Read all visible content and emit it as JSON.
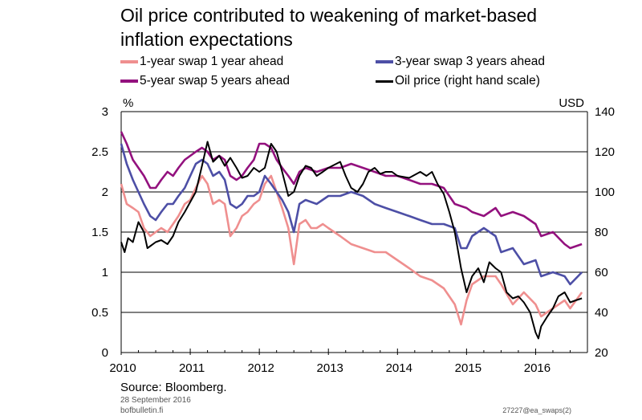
{
  "chart_data": {
    "type": "line",
    "title": "Oil price contributed to weakening of market-based inflation expectations",
    "title_lines": [
      "Oil price contributed to weakening of market-based",
      "inflation expectations"
    ],
    "left_unit": "%",
    "right_unit": "USD",
    "left_axis": {
      "min": 0,
      "max": 3,
      "ticks": [
        "0",
        "0.5",
        "1",
        "1.5",
        "2",
        "2.5",
        "3"
      ]
    },
    "right_axis": {
      "min": 20,
      "max": 140,
      "ticks": [
        "20",
        "40",
        "60",
        "80",
        "100",
        "120",
        "140"
      ]
    },
    "x_axis": {
      "min": 2010,
      "max": 2016.75,
      "ticks": [
        "2010",
        "2011",
        "2012",
        "2013",
        "2014",
        "2015",
        "2016"
      ]
    },
    "grid": "horizontal",
    "legend_position": "top",
    "series": [
      {
        "name": "1-year swap 1 year ahead",
        "color": "#ef8f8f",
        "axis": "left",
        "x": [
          2010.0,
          2010.08,
          2010.17,
          2010.25,
          2010.33,
          2010.42,
          2010.5,
          2010.58,
          2010.67,
          2010.75,
          2010.83,
          2010.92,
          2011.0,
          2011.08,
          2011.17,
          2011.25,
          2011.33,
          2011.42,
          2011.5,
          2011.58,
          2011.67,
          2011.75,
          2011.83,
          2011.92,
          2012.0,
          2012.08,
          2012.17,
          2012.25,
          2012.33,
          2012.42,
          2012.5,
          2012.58,
          2012.67,
          2012.75,
          2012.83,
          2012.92,
          2013.0,
          2013.17,
          2013.33,
          2013.5,
          2013.67,
          2013.83,
          2014.0,
          2014.17,
          2014.33,
          2014.5,
          2014.67,
          2014.83,
          2014.92,
          2015.0,
          2015.08,
          2015.25,
          2015.42,
          2015.5,
          2015.67,
          2015.83,
          2016.0,
          2016.08,
          2016.25,
          2016.42,
          2016.5,
          2016.67
        ],
        "values": [
          2.1,
          1.85,
          1.8,
          1.75,
          1.55,
          1.45,
          1.5,
          1.55,
          1.5,
          1.6,
          1.7,
          1.85,
          1.9,
          2.05,
          2.2,
          2.1,
          1.85,
          1.9,
          1.85,
          1.45,
          1.55,
          1.7,
          1.75,
          1.85,
          1.9,
          2.1,
          2.2,
          2.0,
          1.8,
          1.55,
          1.1,
          1.6,
          1.65,
          1.55,
          1.55,
          1.6,
          1.55,
          1.45,
          1.35,
          1.3,
          1.25,
          1.25,
          1.15,
          1.05,
          0.95,
          0.9,
          0.8,
          0.6,
          0.35,
          0.65,
          0.85,
          0.95,
          0.95,
          0.85,
          0.6,
          0.75,
          0.6,
          0.45,
          0.55,
          0.65,
          0.55,
          0.75
        ]
      },
      {
        "name": "3-year swap 3 years ahead",
        "color": "#4d4fa6",
        "axis": "left",
        "x": [
          2010.0,
          2010.08,
          2010.17,
          2010.25,
          2010.33,
          2010.42,
          2010.5,
          2010.58,
          2010.67,
          2010.75,
          2010.83,
          2010.92,
          2011.0,
          2011.08,
          2011.17,
          2011.25,
          2011.33,
          2011.42,
          2011.5,
          2011.58,
          2011.67,
          2011.75,
          2011.83,
          2011.92,
          2012.0,
          2012.08,
          2012.17,
          2012.25,
          2012.33,
          2012.42,
          2012.5,
          2012.58,
          2012.67,
          2012.83,
          2013.0,
          2013.17,
          2013.33,
          2013.5,
          2013.67,
          2013.83,
          2014.0,
          2014.17,
          2014.33,
          2014.5,
          2014.67,
          2014.83,
          2014.92,
          2015.0,
          2015.08,
          2015.25,
          2015.42,
          2015.5,
          2015.67,
          2015.83,
          2016.0,
          2016.08,
          2016.25,
          2016.42,
          2016.5,
          2016.67
        ],
        "values": [
          2.6,
          2.35,
          2.15,
          2.0,
          1.85,
          1.7,
          1.65,
          1.75,
          1.85,
          1.85,
          1.95,
          2.05,
          2.2,
          2.35,
          2.4,
          2.35,
          2.2,
          2.25,
          2.15,
          1.85,
          1.8,
          1.85,
          1.95,
          1.95,
          2.0,
          2.2,
          2.1,
          2.0,
          1.9,
          1.75,
          1.5,
          1.85,
          1.9,
          1.85,
          1.95,
          1.95,
          2.0,
          1.95,
          1.85,
          1.8,
          1.75,
          1.7,
          1.65,
          1.6,
          1.6,
          1.55,
          1.3,
          1.3,
          1.45,
          1.55,
          1.45,
          1.25,
          1.3,
          1.1,
          1.15,
          0.95,
          1.0,
          0.95,
          0.85,
          1.0
        ]
      },
      {
        "name": "5-year swap 5 years ahead",
        "color": "#93117e",
        "axis": "left",
        "x": [
          2010.0,
          2010.08,
          2010.17,
          2010.25,
          2010.33,
          2010.42,
          2010.5,
          2010.58,
          2010.67,
          2010.75,
          2010.83,
          2010.92,
          2011.0,
          2011.08,
          2011.17,
          2011.25,
          2011.33,
          2011.42,
          2011.5,
          2011.58,
          2011.67,
          2011.75,
          2011.83,
          2011.92,
          2012.0,
          2012.08,
          2012.17,
          2012.25,
          2012.33,
          2012.42,
          2012.5,
          2012.58,
          2012.67,
          2012.83,
          2013.0,
          2013.17,
          2013.33,
          2013.5,
          2013.67,
          2013.83,
          2014.0,
          2014.17,
          2014.33,
          2014.5,
          2014.67,
          2014.83,
          2015.0,
          2015.08,
          2015.25,
          2015.42,
          2015.5,
          2015.67,
          2015.83,
          2016.0,
          2016.08,
          2016.25,
          2016.42,
          2016.5,
          2016.67
        ],
        "values": [
          2.75,
          2.6,
          2.4,
          2.3,
          2.2,
          2.05,
          2.05,
          2.15,
          2.25,
          2.2,
          2.3,
          2.4,
          2.45,
          2.5,
          2.55,
          2.5,
          2.4,
          2.45,
          2.4,
          2.2,
          2.15,
          2.2,
          2.3,
          2.4,
          2.6,
          2.6,
          2.55,
          2.4,
          2.3,
          2.2,
          2.1,
          2.25,
          2.3,
          2.25,
          2.3,
          2.3,
          2.35,
          2.3,
          2.25,
          2.2,
          2.2,
          2.15,
          2.1,
          2.1,
          2.05,
          1.85,
          1.8,
          1.75,
          1.7,
          1.8,
          1.7,
          1.75,
          1.7,
          1.6,
          1.45,
          1.5,
          1.35,
          1.3,
          1.35
        ]
      },
      {
        "name": "Oil price (right hand scale)",
        "color": "#000000",
        "axis": "right",
        "x": [
          2010.0,
          2010.05,
          2010.1,
          2010.17,
          2010.25,
          2010.33,
          2010.38,
          2010.42,
          2010.5,
          2010.58,
          2010.67,
          2010.75,
          2010.83,
          2010.92,
          2011.0,
          2011.08,
          2011.17,
          2011.25,
          2011.33,
          2011.42,
          2011.5,
          2011.58,
          2011.67,
          2011.75,
          2011.83,
          2011.92,
          2012.0,
          2012.08,
          2012.17,
          2012.25,
          2012.33,
          2012.42,
          2012.5,
          2012.58,
          2012.67,
          2012.75,
          2012.83,
          2012.92,
          2013.0,
          2013.17,
          2013.25,
          2013.33,
          2013.42,
          2013.5,
          2013.58,
          2013.67,
          2013.75,
          2013.83,
          2013.92,
          2014.0,
          2014.17,
          2014.33,
          2014.42,
          2014.5,
          2014.58,
          2014.67,
          2014.75,
          2014.83,
          2014.92,
          2015.0,
          2015.08,
          2015.17,
          2015.25,
          2015.33,
          2015.42,
          2015.5,
          2015.58,
          2015.67,
          2015.75,
          2015.83,
          2015.92,
          2016.0,
          2016.04,
          2016.08,
          2016.17,
          2016.25,
          2016.33,
          2016.42,
          2016.5,
          2016.58,
          2016.67
        ],
        "values": [
          75,
          70,
          77,
          75,
          85,
          80,
          72,
          73,
          75,
          76,
          74,
          78,
          85,
          90,
          95,
          100,
          113,
          125,
          115,
          118,
          113,
          117,
          112,
          107,
          108,
          112,
          110,
          112,
          124,
          120,
          110,
          98,
          100,
          108,
          113,
          112,
          108,
          110,
          112,
          115,
          108,
          102,
          100,
          104,
          110,
          112,
          109,
          110,
          110,
          108,
          107,
          110,
          108,
          110,
          104,
          99,
          90,
          80,
          62,
          50,
          58,
          62,
          55,
          65,
          62,
          60,
          50,
          47,
          48,
          45,
          40,
          30,
          27,
          33,
          38,
          42,
          48,
          50,
          45,
          46,
          47
        ]
      }
    ]
  },
  "footer": {
    "source": "Source: Bloomberg.",
    "date": "28 September 2016",
    "site": "bofbulletin.fi",
    "code": "27227@ea_swaps(2)"
  }
}
